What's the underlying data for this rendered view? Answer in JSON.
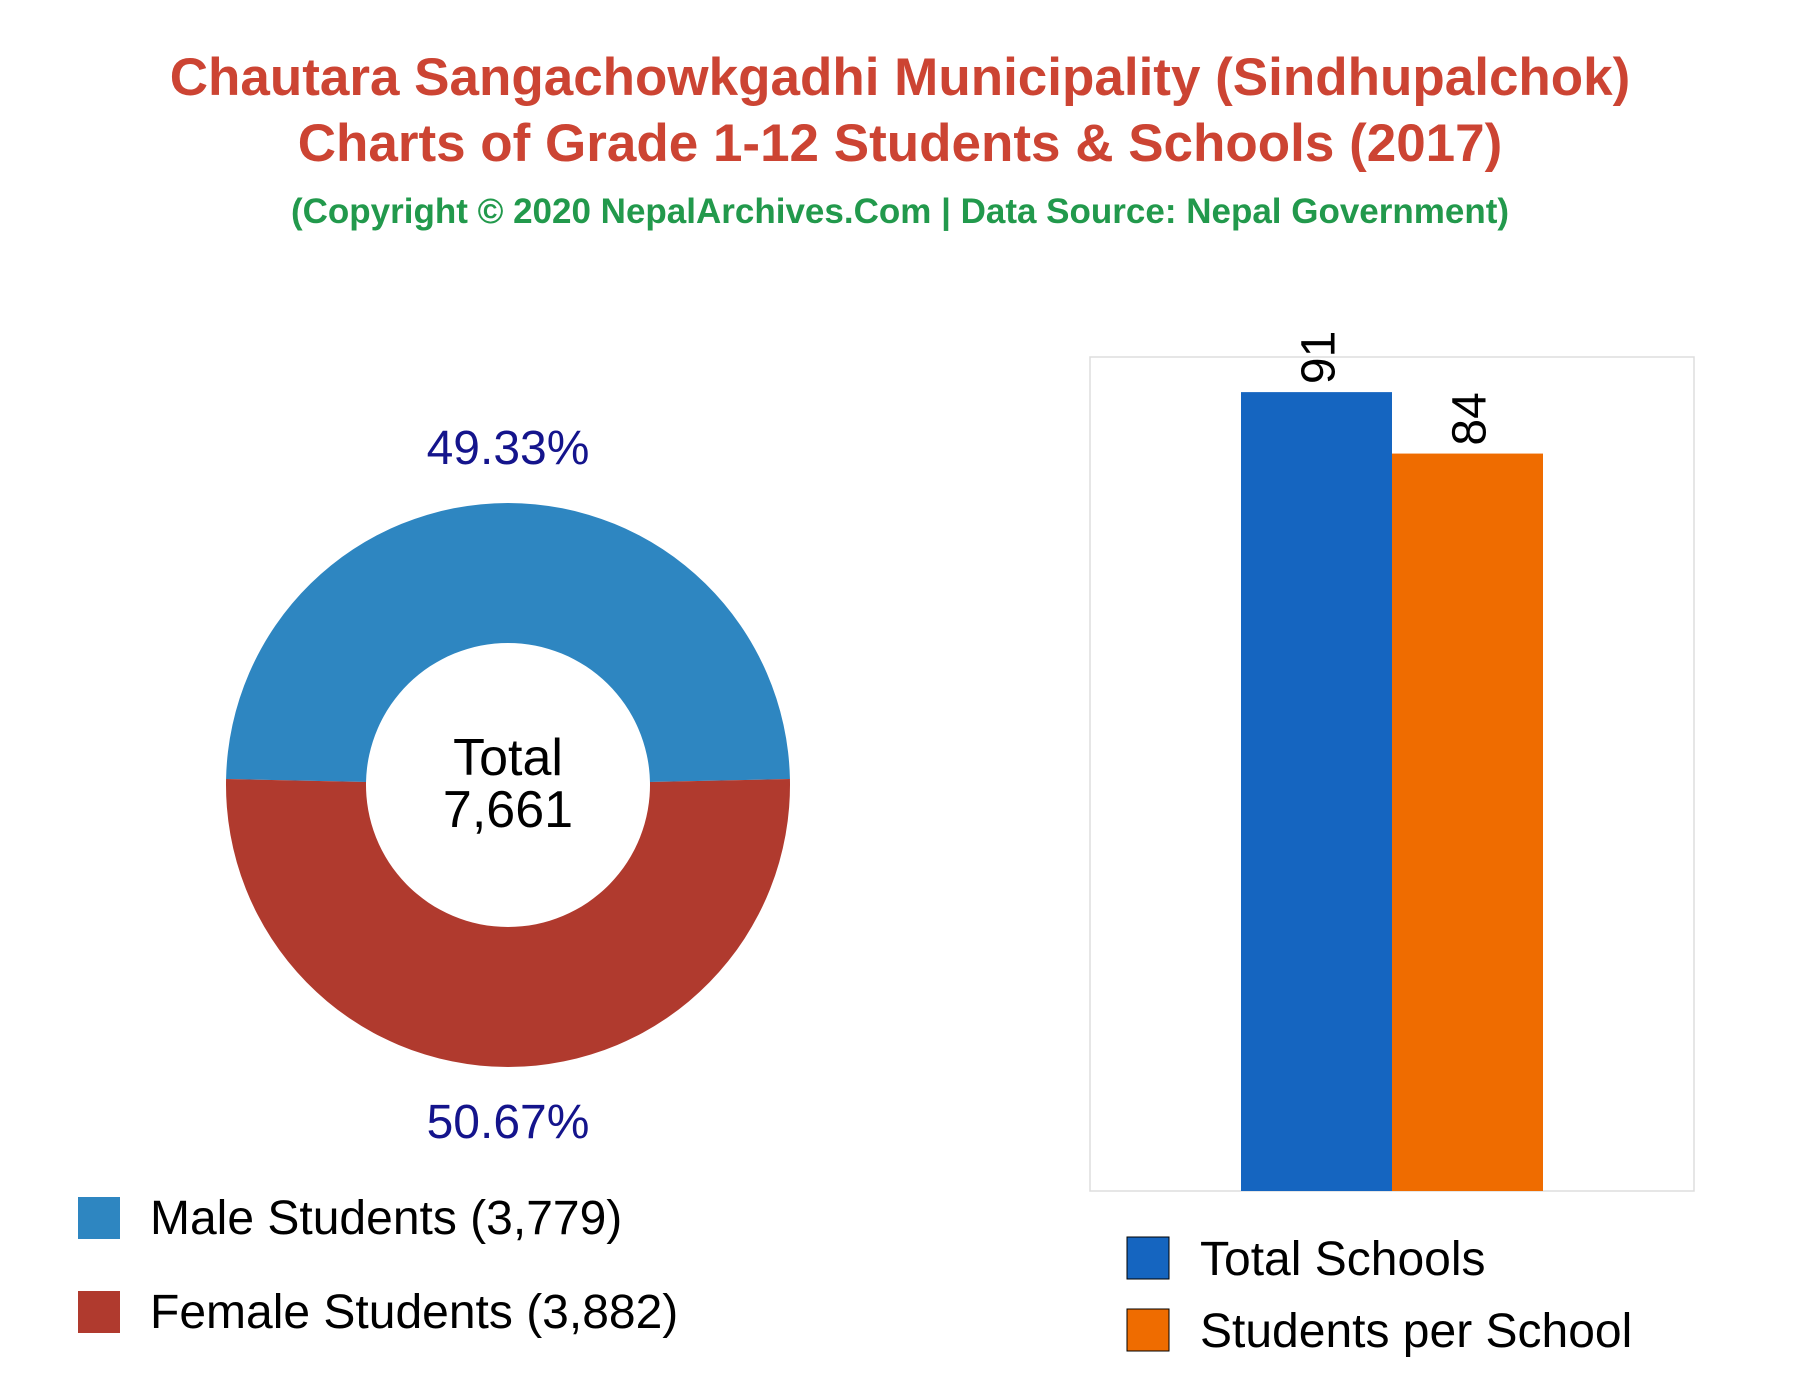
{
  "header": {
    "title_line1": "Chautara Sangachowkgadhi Municipality (Sindhupalchok)",
    "title_line2": "Charts of Grade 1-12 Students & Schools (2017)",
    "subtitle": "(Copyright © 2020 NepalArchives.Com | Data Source: Nepal Government)"
  },
  "colors": {
    "title": "#cc4433",
    "subtitle": "#22994c",
    "male": "#2e86c1",
    "female": "#b03a2e",
    "total_schools": "#1565c0",
    "students_per_school": "#ef6c00",
    "percent_label": "#14148c"
  },
  "chart_data": [
    {
      "type": "pie",
      "donut": true,
      "center_label": {
        "line1": "Total",
        "line2": "7,661"
      },
      "slices": [
        {
          "label": "Male Students (3,779)",
          "value": 3779,
          "percent_label": "49.33%",
          "color": "#2e86c1"
        },
        {
          "label": "Female Students (3,882)",
          "value": 3882,
          "percent_label": "50.67%",
          "color": "#b03a2e"
        }
      ]
    },
    {
      "type": "bar",
      "categories": [
        ""
      ],
      "series": [
        {
          "name": "Total Schools",
          "values": [
            91
          ],
          "color": "#1565c0",
          "label": "91"
        },
        {
          "name": "Students per School",
          "values": [
            84
          ],
          "color": "#ef6c00",
          "label": "84"
        }
      ],
      "ylim": [
        0,
        95
      ],
      "grid": false
    }
  ]
}
